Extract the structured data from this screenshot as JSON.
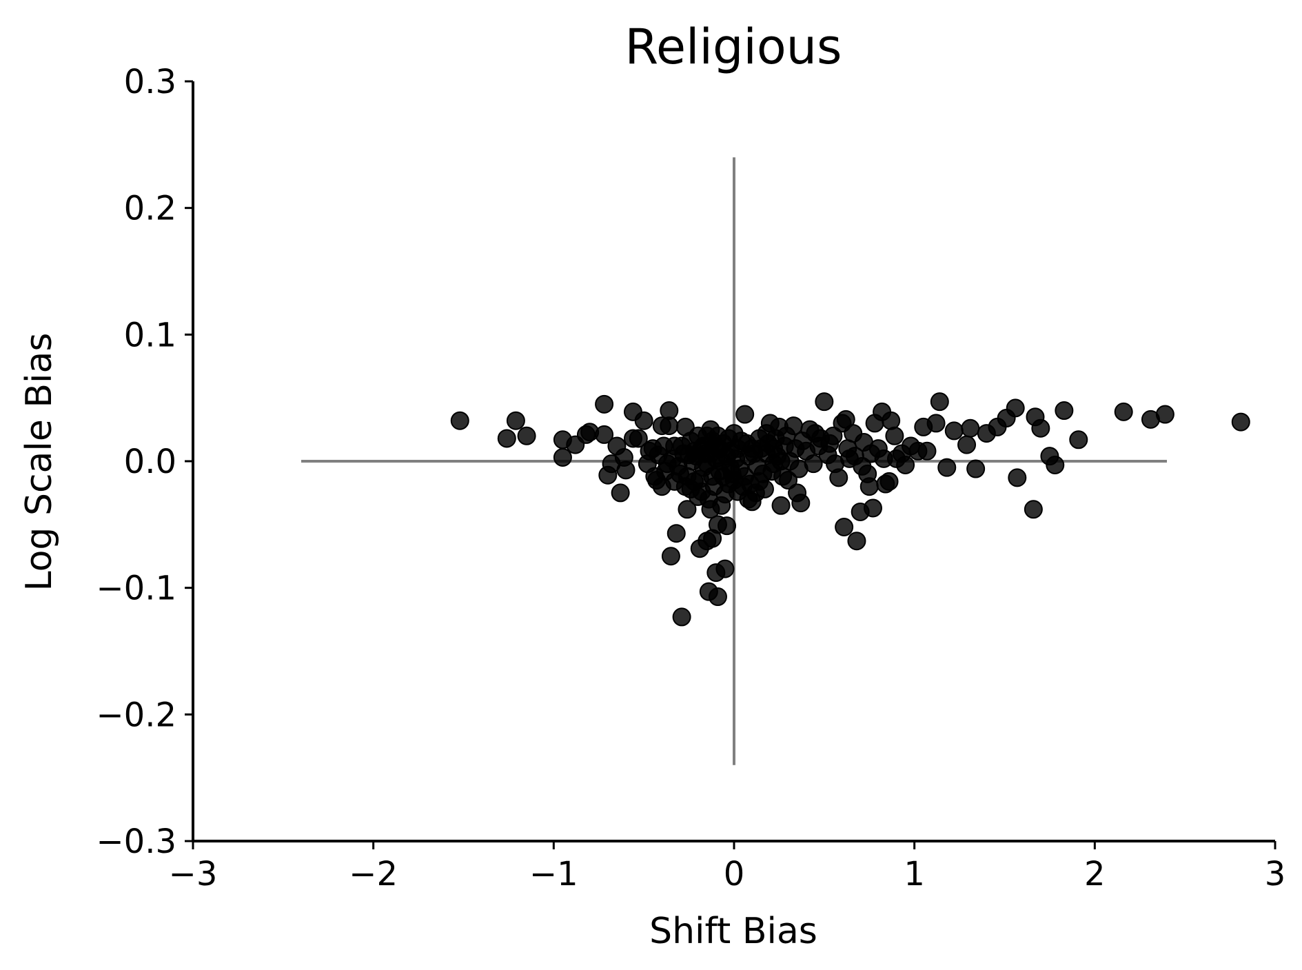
{
  "chart_data": {
    "type": "scatter",
    "title": "Religious",
    "xlabel": "Shift Bias",
    "ylabel": "Log Scale Bias",
    "xlim": [
      -3,
      3
    ],
    "ylim": [
      -0.3,
      0.3
    ],
    "xticks": [
      -3,
      -2,
      -1,
      0,
      1,
      2,
      3
    ],
    "yticks": [
      -0.3,
      -0.2,
      -0.1,
      0.0,
      0.1,
      0.2,
      0.3
    ],
    "xtick_labels": [
      "−3",
      "−2",
      "−1",
      "0",
      "1",
      "2",
      "3"
    ],
    "ytick_labels": [
      "−0.3",
      "−0.2",
      "−0.1",
      "0.0",
      "0.1",
      "0.2",
      "0.3"
    ],
    "grid": false,
    "reference_lines": {
      "horizontal": {
        "y": 0,
        "x_from": -2.4,
        "x_to": 2.4
      },
      "vertical": {
        "x": 0,
        "y_from": -0.24,
        "y_to": 0.24
      }
    },
    "colors": {
      "points": "#000000",
      "reference": "#808080",
      "axes": "#000000"
    },
    "points": [
      [
        -1.52,
        0.032
      ],
      [
        -1.26,
        0.018
      ],
      [
        -1.21,
        0.032
      ],
      [
        -1.15,
        0.02
      ],
      [
        -0.95,
        0.017
      ],
      [
        -0.95,
        0.003
      ],
      [
        -0.88,
        0.013
      ],
      [
        -0.82,
        0.021
      ],
      [
        -0.8,
        0.023
      ],
      [
        -0.72,
        0.045
      ],
      [
        -0.72,
        0.021
      ],
      [
        -0.7,
        -0.011
      ],
      [
        -0.68,
        -0.002
      ],
      [
        -0.65,
        0.012
      ],
      [
        -0.63,
        -0.025
      ],
      [
        -0.61,
        0.003
      ],
      [
        -0.6,
        -0.007
      ],
      [
        -0.56,
        0.039
      ],
      [
        -0.56,
        0.018
      ],
      [
        -0.53,
        0.018
      ],
      [
        -0.5,
        0.032
      ],
      [
        -0.48,
        -0.002
      ],
      [
        -0.45,
        0.01
      ],
      [
        -0.43,
        -0.015
      ],
      [
        -0.4,
        0.028
      ],
      [
        -0.4,
        -0.02
      ],
      [
        -0.36,
        0.04
      ],
      [
        -0.36,
        0.028
      ],
      [
        -0.35,
        -0.075
      ],
      [
        -0.33,
        0.012
      ],
      [
        -0.32,
        -0.057
      ],
      [
        -0.3,
        -0.01
      ],
      [
        -0.29,
        -0.123
      ],
      [
        -0.27,
        0.027
      ],
      [
        -0.26,
        -0.038
      ],
      [
        -0.25,
        0.005
      ],
      [
        -0.24,
        -0.022
      ],
      [
        -0.22,
        0.008
      ],
      [
        -0.2,
        -0.028
      ],
      [
        -0.19,
        -0.069
      ],
      [
        -0.18,
        0.01
      ],
      [
        -0.17,
        -0.005
      ],
      [
        -0.15,
        -0.063
      ],
      [
        -0.15,
        0.02
      ],
      [
        -0.14,
        -0.103
      ],
      [
        -0.13,
        0.025
      ],
      [
        -0.13,
        -0.038
      ],
      [
        -0.12,
        -0.061
      ],
      [
        -0.11,
        0.012
      ],
      [
        -0.1,
        -0.088
      ],
      [
        -0.09,
        -0.107
      ],
      [
        -0.09,
        -0.05
      ],
      [
        -0.08,
        0.01
      ],
      [
        -0.07,
        -0.035
      ],
      [
        -0.06,
        -0.012
      ],
      [
        -0.05,
        -0.085
      ],
      [
        -0.04,
        -0.051
      ],
      [
        -0.03,
        0.018
      ],
      [
        -0.02,
        -0.005
      ],
      [
        0.0,
        0.022
      ],
      [
        0.0,
        -0.015
      ],
      [
        0.02,
        0.01
      ],
      [
        0.05,
        -0.02
      ],
      [
        0.06,
        0.037
      ],
      [
        0.08,
        -0.03
      ],
      [
        0.1,
        0.01
      ],
      [
        0.12,
        -0.025
      ],
      [
        0.14,
        0.018
      ],
      [
        0.16,
        -0.01
      ],
      [
        0.18,
        0.022
      ],
      [
        0.2,
        0.03
      ],
      [
        0.22,
        -0.002
      ],
      [
        0.25,
        0.027
      ],
      [
        0.26,
        -0.035
      ],
      [
        0.28,
        0.012
      ],
      [
        0.3,
        -0.015
      ],
      [
        0.33,
        0.028
      ],
      [
        0.35,
        -0.025
      ],
      [
        0.37,
        -0.033
      ],
      [
        0.4,
        0.008
      ],
      [
        0.42,
        0.025
      ],
      [
        0.45,
        0.022
      ],
      [
        0.48,
        0.018
      ],
      [
        0.5,
        0.047
      ],
      [
        0.52,
        0.005
      ],
      [
        0.55,
        0.02
      ],
      [
        0.58,
        -0.013
      ],
      [
        0.6,
        0.03
      ],
      [
        0.62,
        0.033
      ],
      [
        0.61,
        -0.052
      ],
      [
        0.64,
        0.002
      ],
      [
        0.66,
        0.022
      ],
      [
        0.68,
        -0.063
      ],
      [
        0.7,
        -0.04
      ],
      [
        0.72,
        0.015
      ],
      [
        0.74,
        -0.01
      ],
      [
        0.75,
        -0.02
      ],
      [
        0.77,
        -0.037
      ],
      [
        0.78,
        0.03
      ],
      [
        0.8,
        0.01
      ],
      [
        0.82,
        0.039
      ],
      [
        0.84,
        -0.018
      ],
      [
        0.86,
        -0.016
      ],
      [
        0.87,
        0.032
      ],
      [
        0.89,
        0.02
      ],
      [
        0.9,
        0.002
      ],
      [
        0.95,
        -0.003
      ],
      [
        0.98,
        0.012
      ],
      [
        1.02,
        0.008
      ],
      [
        1.05,
        0.027
      ],
      [
        1.07,
        0.008
      ],
      [
        1.12,
        0.03
      ],
      [
        1.14,
        0.047
      ],
      [
        1.18,
        -0.005
      ],
      [
        1.22,
        0.024
      ],
      [
        1.29,
        0.013
      ],
      [
        1.31,
        0.026
      ],
      [
        1.34,
        -0.006
      ],
      [
        1.4,
        0.022
      ],
      [
        1.46,
        0.027
      ],
      [
        1.51,
        0.034
      ],
      [
        1.56,
        0.042
      ],
      [
        1.57,
        -0.013
      ],
      [
        1.66,
        -0.038
      ],
      [
        1.67,
        0.035
      ],
      [
        1.7,
        0.026
      ],
      [
        1.75,
        0.004
      ],
      [
        1.78,
        -0.003
      ],
      [
        1.83,
        0.04
      ],
      [
        1.91,
        0.017
      ],
      [
        2.16,
        0.039
      ],
      [
        2.31,
        0.033
      ],
      [
        2.39,
        0.037
      ],
      [
        2.81,
        0.031
      ],
      [
        -0.42,
        0.005
      ],
      [
        -0.38,
        -0.008
      ],
      [
        -0.34,
        0.002
      ],
      [
        -0.31,
        -0.004
      ],
      [
        -0.28,
        0.006
      ],
      [
        -0.26,
        -0.012
      ],
      [
        -0.23,
        0.0
      ],
      [
        -0.21,
        0.004
      ],
      [
        -0.19,
        -0.014
      ],
      [
        -0.17,
        0.012
      ],
      [
        -0.15,
        -0.002
      ],
      [
        -0.13,
        0.006
      ],
      [
        -0.11,
        -0.02
      ],
      [
        -0.1,
        0.002
      ],
      [
        -0.08,
        -0.008
      ],
      [
        -0.06,
        0.014
      ],
      [
        -0.05,
        -0.026
      ],
      [
        -0.04,
        0.004
      ],
      [
        -0.02,
        0.008
      ],
      [
        -0.01,
        -0.01
      ],
      [
        0.01,
        0.002
      ],
      [
        0.03,
        -0.006
      ],
      [
        0.04,
        0.016
      ],
      [
        0.06,
        -0.012
      ],
      [
        0.08,
        0.004
      ],
      [
        0.09,
        -0.018
      ],
      [
        0.11,
        0.006
      ],
      [
        0.13,
        -0.004
      ],
      [
        0.15,
        0.01
      ],
      [
        0.17,
        -0.022
      ],
      [
        0.19,
        0.014
      ],
      [
        0.21,
        -0.008
      ],
      [
        0.23,
        0.018
      ],
      [
        0.24,
        0.004
      ],
      [
        0.27,
        -0.012
      ],
      [
        0.29,
        0.02
      ],
      [
        0.31,
        0.0
      ],
      [
        0.34,
        0.01
      ],
      [
        0.36,
        -0.006
      ],
      [
        0.38,
        0.016
      ],
      [
        0.44,
        -0.002
      ],
      [
        0.47,
        0.012
      ],
      [
        0.53,
        0.014
      ],
      [
        0.56,
        -0.002
      ],
      [
        0.63,
        0.01
      ],
      [
        0.67,
        0.004
      ],
      [
        0.71,
        -0.004
      ],
      [
        0.76,
        0.006
      ],
      [
        0.83,
        0.002
      ],
      [
        0.93,
        0.006
      ],
      [
        -0.27,
        -0.02
      ],
      [
        -0.22,
        -0.016
      ],
      [
        -0.18,
        -0.024
      ],
      [
        -0.14,
        -0.03
      ],
      [
        -0.12,
        0.016
      ],
      [
        -0.09,
        0.02
      ],
      [
        -0.07,
        0.0
      ],
      [
        -0.03,
        -0.018
      ],
      [
        0.02,
        -0.024
      ],
      [
        0.07,
        0.014
      ],
      [
        0.1,
        -0.032
      ],
      [
        0.14,
        -0.016
      ],
      [
        0.18,
        0.006
      ],
      [
        0.22,
        0.01
      ],
      [
        0.26,
        0.0
      ],
      [
        -0.47,
        0.008
      ],
      [
        -0.44,
        -0.012
      ],
      [
        -0.39,
        0.012
      ],
      [
        -0.37,
        -0.002
      ],
      [
        -0.33,
        -0.016
      ],
      [
        -0.29,
        0.012
      ],
      [
        -0.24,
        0.016
      ],
      [
        -0.2,
        0.02
      ],
      [
        -0.16,
        0.006
      ],
      [
        -0.12,
        -0.012
      ]
    ]
  }
}
